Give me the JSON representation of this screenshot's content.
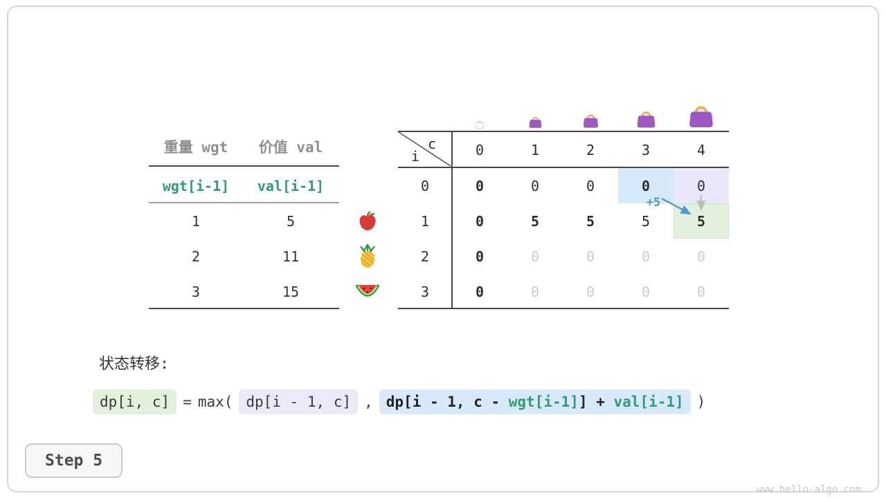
{
  "colors": {
    "green_text": "#2e9c74",
    "header_gray": "#8f8f8f",
    "faded_gray": "#cbcbcb",
    "dark_text": "#2e2e2e",
    "blue_accent": "#4e97d1",
    "cell_blue": "#d6e9f8",
    "cell_purple": "#e8e8fa",
    "cell_green": "#e3f0dd",
    "bag_purple": "#9c59c4",
    "bag_handle": "#f0ad4e"
  },
  "weights_table": {
    "col1_header": "重量 wgt",
    "col2_header": "价值 val",
    "formula_wgt": "wgt[i-1]",
    "formula_val": "val[i-1]",
    "rows": [
      {
        "wgt": "1",
        "val": "5",
        "fruit": "apple"
      },
      {
        "wgt": "2",
        "val": "11",
        "fruit": "pineapple"
      },
      {
        "wgt": "3",
        "val": "15",
        "fruit": "watermelon"
      }
    ]
  },
  "dp_table": {
    "corner_col": "c",
    "corner_row": "i",
    "col_headers": [
      "0",
      "1",
      "2",
      "3",
      "4"
    ],
    "bags": [
      {
        "size": 14,
        "filled": false
      },
      {
        "size": 21,
        "filled": true
      },
      {
        "size": 25,
        "filled": true
      },
      {
        "size": 31,
        "filled": true
      },
      {
        "size": 40,
        "filled": true
      }
    ],
    "annotation": "+5",
    "rows": [
      {
        "label": "0",
        "cells": [
          {
            "v": "0",
            "bold": true
          },
          {
            "v": "0"
          },
          {
            "v": "0"
          },
          {
            "v": "0",
            "bold": true,
            "bg": "blue"
          },
          {
            "v": "0",
            "bg": "purple"
          }
        ]
      },
      {
        "label": "1",
        "cells": [
          {
            "v": "0",
            "bold": true
          },
          {
            "v": "5",
            "bold": true
          },
          {
            "v": "5",
            "bold": true
          },
          {
            "v": "5"
          },
          {
            "v": "5",
            "bold": true,
            "bg": "green"
          }
        ]
      },
      {
        "label": "2",
        "cells": [
          {
            "v": "0",
            "bold": true
          },
          {
            "v": "0",
            "faded": true
          },
          {
            "v": "0",
            "faded": true
          },
          {
            "v": "0",
            "faded": true
          },
          {
            "v": "0",
            "faded": true
          }
        ]
      },
      {
        "label": "3",
        "cells": [
          {
            "v": "0",
            "bold": true
          },
          {
            "v": "0",
            "faded": true
          },
          {
            "v": "0",
            "faded": true
          },
          {
            "v": "0",
            "faded": true
          },
          {
            "v": "0",
            "faded": true
          }
        ]
      }
    ]
  },
  "transition": {
    "label": "状态转移:",
    "lhs": "dp[i, c]",
    "eq": "=",
    "max_open": "max(",
    "term1": "dp[i - 1, c]",
    "comma": ",",
    "term2_p1": "dp[i - 1, c - ",
    "term2_wgt": "wgt[i-1]",
    "term2_p2": "] + ",
    "term2_val": "val[i-1]",
    "close": ")"
  },
  "step_label": "Step 5",
  "watermark": "www.hello-algo.com"
}
